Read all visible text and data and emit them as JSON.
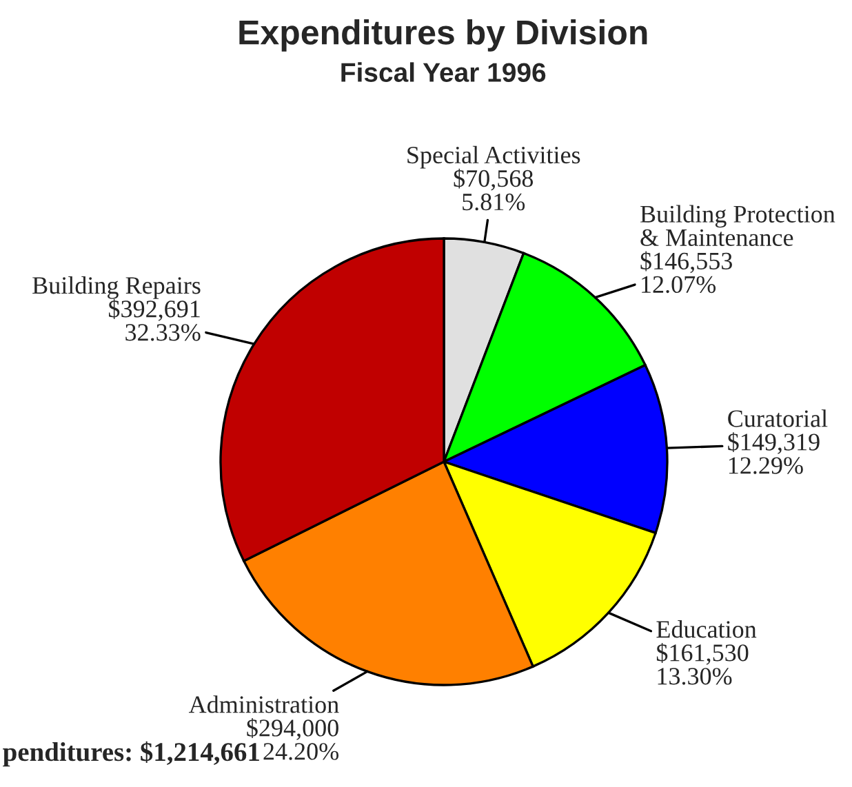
{
  "chart_data": {
    "type": "pie",
    "title": "Expenditures by Division",
    "subtitle": "Fiscal Year 1996",
    "categories": [
      "Special Activities",
      "Building Protection\n& Maintenance",
      "Curatorial",
      "Education",
      "Administration",
      "Building Repairs"
    ],
    "values": [
      5.81,
      12.07,
      12.29,
      13.3,
      24.2,
      32.33
    ],
    "value_labels": [
      "$70,568\n5.81%",
      "$146,553\n12.07%",
      "$149,319\n12.29%",
      "$161,530\n13.30%",
      "$294,000\n24.20%",
      "$392,691\n32.33%"
    ],
    "colors": [
      "#e0e0e0",
      "#00ff00",
      "#0000ff",
      "#ffff00",
      "#ff8000",
      "#c00000"
    ],
    "annotations": [
      "penditures: $1,214,661"
    ]
  }
}
